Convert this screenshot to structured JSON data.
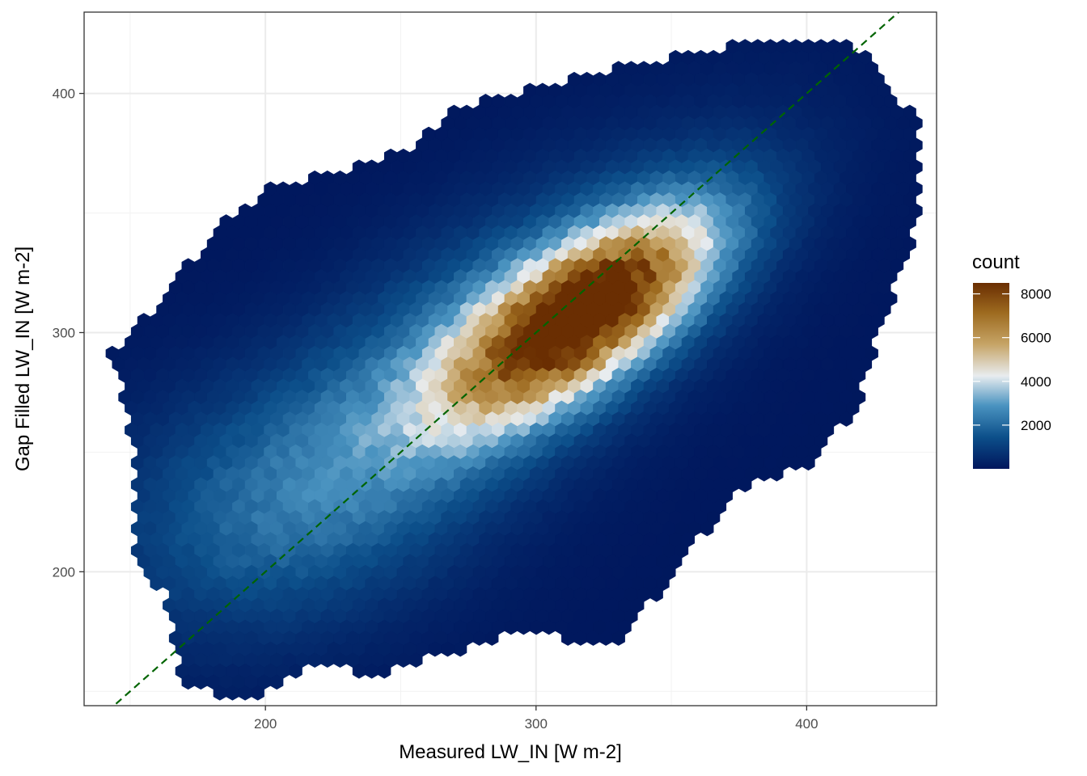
{
  "chart_data": {
    "type": "hexbin",
    "xlabel": "Measured LW_IN [W m-2]",
    "ylabel": "Gap Filled LW_IN [W m-2]",
    "xlim": [
      133,
      448
    ],
    "ylim": [
      144,
      434
    ],
    "xticks": [
      200,
      300,
      400
    ],
    "yticks": [
      200,
      300,
      400
    ],
    "grid": true,
    "reference_line": {
      "type": "1:1",
      "slope": 1,
      "intercept": 0,
      "color": "#006400",
      "style": "dashed"
    },
    "legend": {
      "title": "count",
      "position": "right",
      "range": [
        1,
        8500
      ],
      "ticks": [
        2000,
        4000,
        6000,
        8000
      ],
      "colors": [
        "#00165c",
        "#0c4f8a",
        "#4a93c0",
        "#e8ecef",
        "#c6a466",
        "#9d6a1f",
        "#6a2e02"
      ]
    },
    "distribution": {
      "description_values": {
        "peak_x": 318,
        "peak_y": 308,
        "peak_count": 8300,
        "core_axis_angle_deg": 40
      }
    }
  }
}
